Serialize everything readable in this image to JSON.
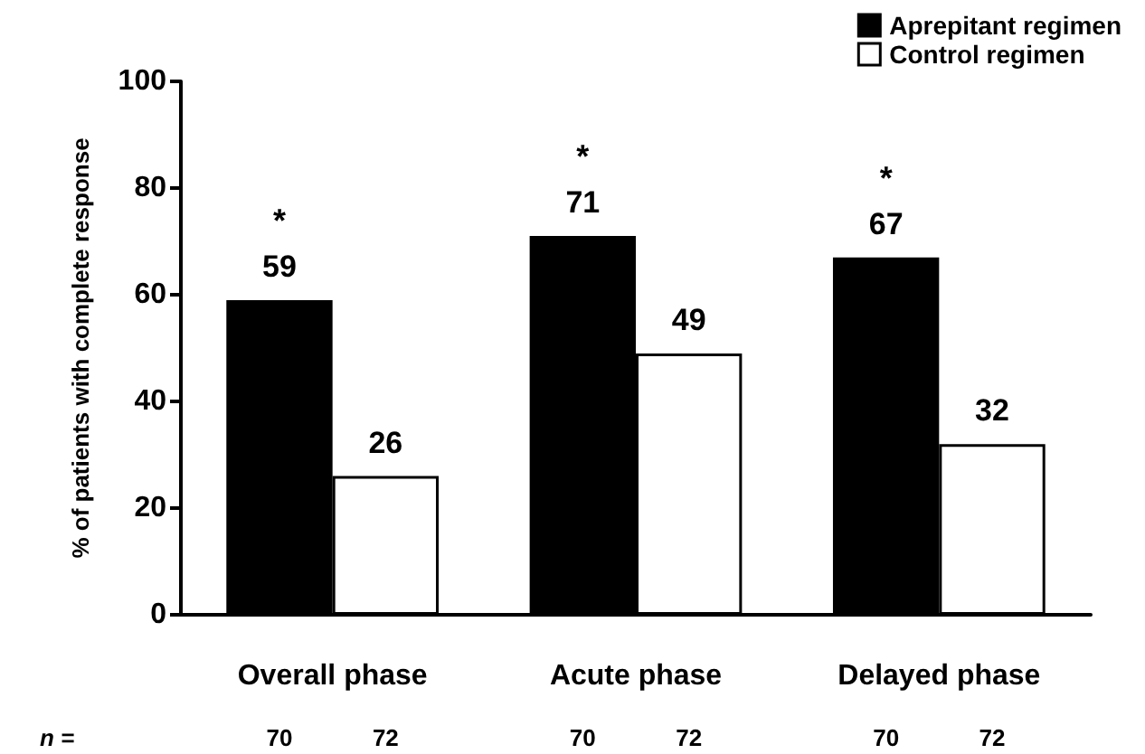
{
  "chart_data": {
    "type": "bar",
    "ylabel": "% of patients with complete response",
    "categories": [
      "Overall phase",
      "Acute phase",
      "Delayed phase"
    ],
    "series": [
      {
        "name": "Aprepitant regimen",
        "color": "#000000",
        "values": [
          59,
          71,
          67
        ]
      },
      {
        "name": "Control regimen",
        "color": "#ffffff",
        "values": [
          26,
          49,
          32
        ]
      }
    ],
    "ylim": [
      0,
      100
    ],
    "yticks": [
      0,
      20,
      40,
      60,
      80,
      100
    ],
    "grid": false,
    "legend": "top right",
    "data_labels": true,
    "annotations": [
      "*",
      "*",
      "*",
      "n =",
      "70",
      "72",
      "70",
      "72",
      "70",
      "72"
    ]
  }
}
